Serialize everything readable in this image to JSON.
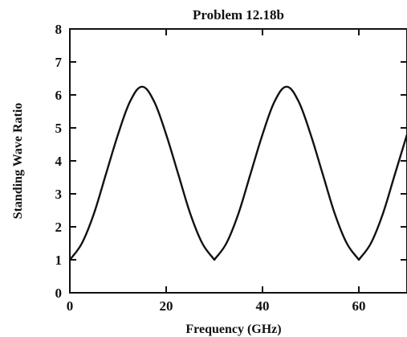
{
  "chart_data": {
    "type": "line",
    "title": "Problem 12.18b",
    "xlabel": "Frequency (GHz)",
    "ylabel": "Standing Wave Ratio",
    "xlim": [
      0,
      70
    ],
    "ylim": [
      0,
      8
    ],
    "xticks": [
      0,
      20,
      40,
      60
    ],
    "yticks": [
      0,
      1,
      2,
      3,
      4,
      5,
      6,
      7,
      8
    ],
    "grid": false,
    "series": [
      {
        "x": [
          0,
          2.5,
          5,
          7.5,
          10,
          12.5,
          15,
          17.5,
          20,
          22.5,
          25,
          27.5,
          30,
          32.5,
          35,
          37.5,
          40,
          42.5,
          45,
          47.5,
          50,
          52.5,
          55,
          57.5,
          60,
          62.5,
          65,
          67.5,
          70
        ],
        "values": [
          1.0,
          1.5,
          2.4,
          3.6,
          4.8,
          5.8,
          6.25,
          5.8,
          4.8,
          3.6,
          2.4,
          1.5,
          1.0,
          1.5,
          2.4,
          3.6,
          4.8,
          5.8,
          6.25,
          5.8,
          4.8,
          3.6,
          2.4,
          1.5,
          1.0,
          1.5,
          2.4,
          3.6,
          4.8
        ]
      }
    ]
  }
}
